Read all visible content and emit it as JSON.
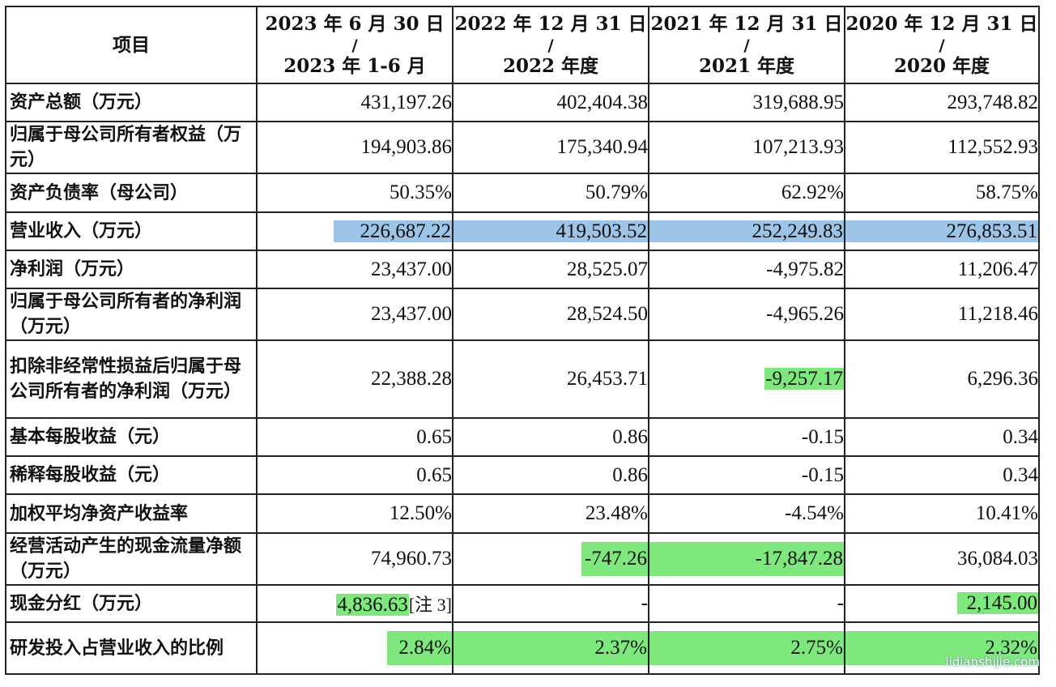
{
  "table": {
    "corner_label": "项目",
    "columns": [
      {
        "top": "2023 年 6 月 30 日",
        "slash": "/",
        "bottom": "2023 年 1-6 月"
      },
      {
        "top": "2022 年 12 月 31 日",
        "slash": "/",
        "bottom": "2022 年度"
      },
      {
        "top": "2021 年 12 月 31 日",
        "slash": "/",
        "bottom": "2021 年度"
      },
      {
        "top": "2020 年 12 月 31 日",
        "slash": "/",
        "bottom": "2020 年度"
      }
    ],
    "rows": [
      {
        "label": "资产总额（万元）",
        "values": [
          "431,197.26",
          "402,404.38",
          "319,688.95",
          "293,748.82"
        ]
      },
      {
        "label": "归属于母公司所有者权益（万元）",
        "values": [
          "194,903.86",
          "175,340.94",
          "107,213.93",
          "112,552.93"
        ]
      },
      {
        "label": "资产负债率（母公司）",
        "values": [
          "50.35%",
          "50.79%",
          "62.92%",
          "58.75%"
        ]
      },
      {
        "label": "营业收入（万元）",
        "values": [
          "226,687.22",
          "419,503.52",
          "252,249.83",
          "276,853.51"
        ]
      },
      {
        "label": "净利润（万元）",
        "values": [
          "23,437.00",
          "28,525.07",
          "-4,975.82",
          "11,206.47"
        ]
      },
      {
        "label": "归属于母公司所有者的净利润（万元）",
        "values": [
          "23,437.00",
          "28,524.50",
          "-4,965.26",
          "11,218.46"
        ]
      },
      {
        "label": "扣除非经常性损益后归属于母公司所有者的净利润（万元）",
        "values": [
          "22,388.28",
          "26,453.71",
          "-9,257.17",
          "6,296.36"
        ]
      },
      {
        "label": "基本每股收益（元）",
        "values": [
          "0.65",
          "0.86",
          "-0.15",
          "0.34"
        ]
      },
      {
        "label": "稀释每股收益（元）",
        "values": [
          "0.65",
          "0.86",
          "-0.15",
          "0.34"
        ]
      },
      {
        "label": "加权平均净资产收益率",
        "values": [
          "12.50%",
          "23.48%",
          "-4.54%",
          "10.41%"
        ]
      },
      {
        "label": "经营活动产生的现金流量净额（万元）",
        "values": [
          "74,960.73",
          "-747.26",
          "-17,847.28",
          "36,084.03"
        ]
      },
      {
        "label": "现金分红（万元）",
        "values": [
          "4,836.63",
          "-",
          "-",
          "2,145.00"
        ],
        "note": "[注 3]"
      },
      {
        "label": "研发投入占营业收入的比例",
        "values": [
          "2.84%",
          "2.37%",
          "2.75%",
          "2.32%"
        ]
      }
    ]
  },
  "highlight_colors": {
    "blue": "#9dc3e6",
    "green": "#7ee87e"
  },
  "watermark": "lidianshijie.com"
}
